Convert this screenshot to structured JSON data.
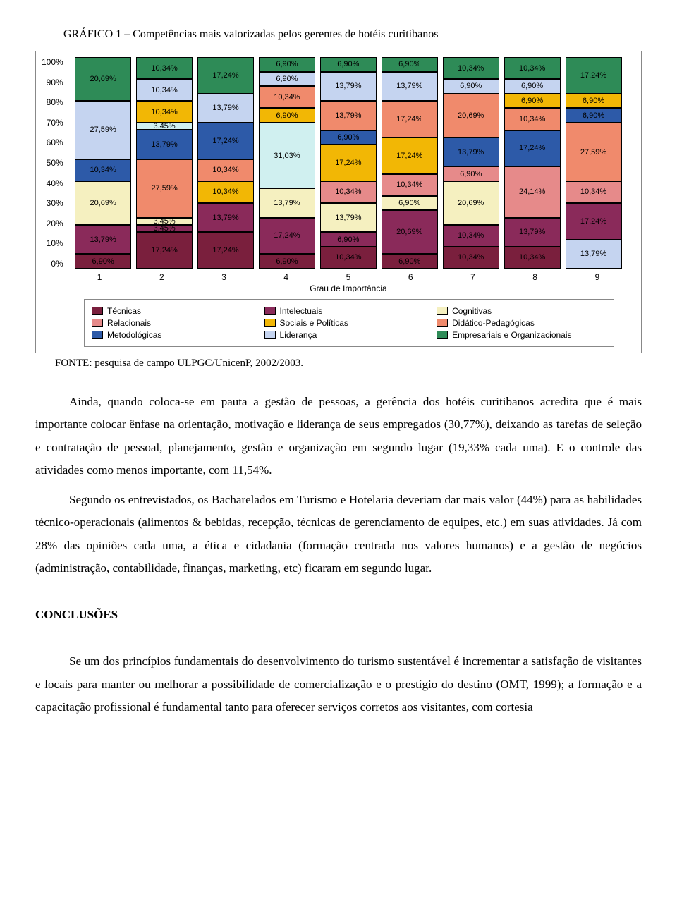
{
  "chart": {
    "title": "GRÁFICO 1 – Competências mais valorizadas pelos gerentes de hotéis curitibanos",
    "type": "stacked-bar",
    "y_ticks": [
      "100%",
      "90%",
      "80%",
      "70%",
      "60%",
      "50%",
      "40%",
      "30%",
      "20%",
      "10%",
      "0%"
    ],
    "x_categories": [
      "1",
      "2",
      "3",
      "4",
      "5",
      "6",
      "7",
      "8",
      "9"
    ],
    "x_axis_title": "Grau de Importância",
    "series": [
      {
        "name": "Técnicas",
        "color": "#7a1f3d"
      },
      {
        "name": "Intelectuais",
        "color": "#8a2a5a"
      },
      {
        "name": "Cognitivas",
        "color": "#f5f0c0"
      },
      {
        "name": "Relacionais",
        "color": "#e68a8a"
      },
      {
        "name": "Sociais e Políticas",
        "color": "#f2b705"
      },
      {
        "name": "Didático-Pedagógicas",
        "color": "#f08a6c"
      },
      {
        "name": "Metodológicas",
        "color": "#2d5aa8"
      },
      {
        "name": "Liderança",
        "color": "#c5d4f0"
      },
      {
        "name": "Empresariais e Organizacionais",
        "color": "#2e8b57"
      }
    ],
    "bars": [
      [
        {
          "v": 6.9,
          "l": "6,90%",
          "c": "#7a1f3d"
        },
        {
          "v": 13.79,
          "l": "13,79%",
          "c": "#8a2a5a"
        },
        {
          "v": 20.69,
          "l": "20,69%",
          "c": "#f5f0c0"
        },
        {
          "v": 10.34,
          "l": "10,34%",
          "c": "#2d5aa8"
        },
        {
          "v": 27.59,
          "l": "27,59%",
          "c": "#c5d4f0"
        },
        {
          "v": 20.69,
          "l": "20,69%",
          "c": "#2e8b57"
        }
      ],
      [
        {
          "v": 17.24,
          "l": "17,24%",
          "c": "#7a1f3d"
        },
        {
          "v": 3.45,
          "l": "3,45%",
          "c": "#8a2a5a"
        },
        {
          "v": 3.45,
          "l": "3,45%",
          "c": "#f5f0c0"
        },
        {
          "v": 27.59,
          "l": "27,59%",
          "c": "#f08a6c"
        },
        {
          "v": 13.79,
          "l": "13,79%",
          "c": "#2d5aa8"
        },
        {
          "v": 3.45,
          "l": "3,45%",
          "c": "#d0f0f0"
        },
        {
          "v": 10.34,
          "l": "10,34%",
          "c": "#f2b705"
        },
        {
          "v": 10.34,
          "l": "10,34%",
          "c": "#c5d4f0"
        },
        {
          "v": 10.34,
          "l": "10,34%",
          "c": "#2e8b57"
        }
      ],
      [
        {
          "v": 17.24,
          "l": "17,24%",
          "c": "#7a1f3d"
        },
        {
          "v": 13.79,
          "l": "13,79%",
          "c": "#8a2a5a"
        },
        {
          "v": 10.34,
          "l": "10,34%",
          "c": "#f2b705"
        },
        {
          "v": 10.34,
          "l": "10,34%",
          "c": "#f08a6c"
        },
        {
          "v": 17.24,
          "l": "17,24%",
          "c": "#2d5aa8"
        },
        {
          "v": 13.79,
          "l": "13,79%",
          "c": "#c5d4f0"
        },
        {
          "v": 17.24,
          "l": "17,24%",
          "c": "#2e8b57"
        }
      ],
      [
        {
          "v": 6.9,
          "l": "6,90%",
          "c": "#7a1f3d"
        },
        {
          "v": 17.24,
          "l": "17,24%",
          "c": "#8a2a5a"
        },
        {
          "v": 13.79,
          "l": "13,79%",
          "c": "#f5f0c0"
        },
        {
          "v": 31.03,
          "l": "31,03%",
          "c": "#d0f0f0"
        },
        {
          "v": 6.9,
          "l": "6,90%",
          "c": "#f2b705"
        },
        {
          "v": 10.34,
          "l": "10,34%",
          "c": "#f08a6c"
        },
        {
          "v": 6.9,
          "l": "6,90%",
          "c": "#c5d4f0"
        },
        {
          "v": 6.9,
          "l": "6,90%",
          "c": "#2e8b57"
        }
      ],
      [
        {
          "v": 10.34,
          "l": "10,34%",
          "c": "#7a1f3d"
        },
        {
          "v": 6.9,
          "l": "6,90%",
          "c": "#8a2a5a"
        },
        {
          "v": 13.79,
          "l": "13,79%",
          "c": "#f5f0c0"
        },
        {
          "v": 10.34,
          "l": "10,34%",
          "c": "#e68a8a"
        },
        {
          "v": 17.24,
          "l": "17,24%",
          "c": "#f2b705"
        },
        {
          "v": 6.9,
          "l": "6,90%",
          "c": "#2d5aa8"
        },
        {
          "v": 13.79,
          "l": "13,79%",
          "c": "#f08a6c"
        },
        {
          "v": 13.79,
          "l": "13,79%",
          "c": "#c5d4f0"
        },
        {
          "v": 6.9,
          "l": "6,90%",
          "c": "#2e8b57"
        }
      ],
      [
        {
          "v": 6.9,
          "l": "6,90%",
          "c": "#7a1f3d"
        },
        {
          "v": 20.69,
          "l": "20,69%",
          "c": "#8a2a5a"
        },
        {
          "v": 6.9,
          "l": "6,90%",
          "c": "#f5f0c0"
        },
        {
          "v": 10.34,
          "l": "10,34%",
          "c": "#e68a8a"
        },
        {
          "v": 17.24,
          "l": "17,24%",
          "c": "#f2b705"
        },
        {
          "v": 17.24,
          "l": "17,24%",
          "c": "#f08a6c"
        },
        {
          "v": 13.79,
          "l": "13,79%",
          "c": "#c5d4f0"
        },
        {
          "v": 6.9,
          "l": "6,90%",
          "c": "#2e8b57"
        }
      ],
      [
        {
          "v": 10.34,
          "l": "10,34%",
          "c": "#7a1f3d"
        },
        {
          "v": 10.34,
          "l": "10,34%",
          "c": "#8a2a5a"
        },
        {
          "v": 20.69,
          "l": "20,69%",
          "c": "#f5f0c0"
        },
        {
          "v": 6.9,
          "l": "6,90%",
          "c": "#e68a8a"
        },
        {
          "v": 13.79,
          "l": "13,79%",
          "c": "#2d5aa8"
        },
        {
          "v": 20.69,
          "l": "20,69%",
          "c": "#f08a6c"
        },
        {
          "v": 6.9,
          "l": "6,90%",
          "c": "#c5d4f0"
        },
        {
          "v": 10.34,
          "l": "10,34%",
          "c": "#2e8b57"
        }
      ],
      [
        {
          "v": 10.34,
          "l": "10,34%",
          "c": "#7a1f3d"
        },
        {
          "v": 13.79,
          "l": "13,79%",
          "c": "#8a2a5a"
        },
        {
          "v": 24.14,
          "l": "24,14%",
          "c": "#e68a8a"
        },
        {
          "v": 17.24,
          "l": "17,24%",
          "c": "#2d5aa8"
        },
        {
          "v": 10.34,
          "l": "10,34%",
          "c": "#f08a6c"
        },
        {
          "v": 6.9,
          "l": "6,90%",
          "c": "#f2b705"
        },
        {
          "v": 6.9,
          "l": "6,90%",
          "c": "#c5d4f0"
        },
        {
          "v": 10.34,
          "l": "10,34%",
          "c": "#2e8b57"
        }
      ],
      [
        {
          "v": 13.79,
          "l": "13,79%",
          "c": "#c5d4f0"
        },
        {
          "v": 17.24,
          "l": "17,24%",
          "c": "#8a2a5a"
        },
        {
          "v": 10.34,
          "l": "10,34%",
          "c": "#e68a8a"
        },
        {
          "v": 27.59,
          "l": "27,59%",
          "c": "#f08a6c"
        },
        {
          "v": 6.9,
          "l": "6,90%",
          "c": "#2d5aa8"
        },
        {
          "v": 6.9,
          "l": "6,90%",
          "c": "#f2b705"
        },
        {
          "v": 17.24,
          "l": "17,24%",
          "c": "#2e8b57"
        }
      ]
    ],
    "legend_rows": [
      [
        {
          "swatch": "#7a1f3d",
          "label": "Técnicas"
        },
        {
          "swatch": "#8a2a5a",
          "label": "Intelectuais"
        },
        {
          "swatch": "#f5f0c0",
          "label": "Cognitivas"
        }
      ],
      [
        {
          "swatch": "#e68a8a",
          "label": "Relacionais"
        },
        {
          "swatch": "#f2b705",
          "label": "Sociais e Políticas"
        },
        {
          "swatch": "#f08a6c",
          "label": "Didático-Pedagógicas"
        }
      ],
      [
        {
          "swatch": "#2d5aa8",
          "label": "Metodológicas"
        },
        {
          "swatch": "#c5d4f0",
          "label": "Liderança"
        },
        {
          "swatch": "#2e8b57",
          "label": "Empresariais e Organizacionais"
        }
      ]
    ]
  },
  "fonte": "FONTE: pesquisa de campo ULPGC/UnicenP, 2002/2003.",
  "para1": "Ainda, quando coloca-se em pauta a gestão de pessoas, a gerência dos hotéis curitibanos acredita que é mais importante colocar ênfase na orientação, motivação e liderança de seus empregados (30,77%), deixando as tarefas de seleção e contratação de pessoal, planejamento, gestão e organização em segundo lugar (19,33% cada uma). E o controle das atividades como menos importante, com 11,54%.",
  "para2": "Segundo os entrevistados, os Bacharelados em Turismo e Hotelaria deveriam dar mais valor (44%) para as habilidades técnico-operacionais (alimentos & bebidas, recepção, técnicas de gerenciamento de equipes, etc.) em suas atividades. Já com 28% das opiniões cada uma, a ética e cidadania (formação centrada nos valores humanos) e a gestão de negócios (administração, contabilidade, finanças, marketing, etc) ficaram em segundo lugar.",
  "conclusoes_h": "CONCLUSÕES",
  "para3": "Se um dos princípios fundamentais do desenvolvimento do turismo sustentável é incrementar a satisfação de visitantes e locais para manter ou melhorar a possibilidade de comercialização e o prestígio do destino (OMT, 1999); a formação e a capacitação profissional é fundamental tanto para oferecer serviços corretos aos visitantes, com cortesia"
}
